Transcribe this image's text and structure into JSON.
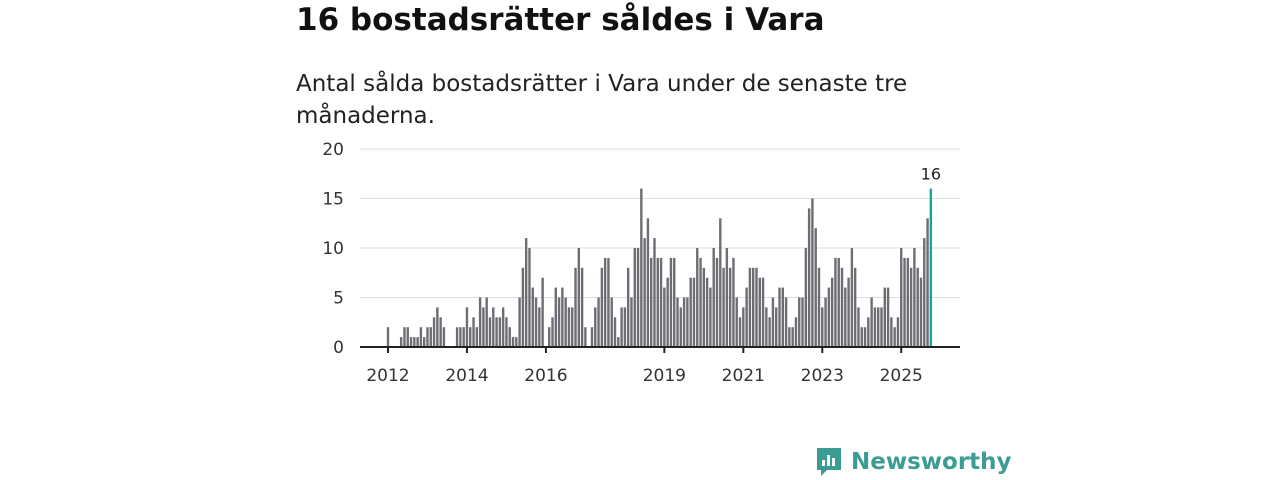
{
  "header": {
    "title": "16 bostadsrätter såldes i Vara",
    "subtitle": "Antal sålda bostadsrätter i Vara under de senaste tre månaderna."
  },
  "brand": {
    "name": "Newsworthy",
    "color": "#3b9c93"
  },
  "chart_data": {
    "type": "bar",
    "title": "16 bostadsrätter såldes i Vara",
    "xlabel": "",
    "ylabel": "",
    "ylim": [
      0,
      20
    ],
    "yticks": [
      "0",
      "5",
      "10",
      "15",
      "20"
    ],
    "xticks": [
      {
        "label": "2012",
        "index": 0
      },
      {
        "label": "2014",
        "index": 24
      },
      {
        "label": "2016",
        "index": 48
      },
      {
        "label": "2019",
        "index": 84
      },
      {
        "label": "2021",
        "index": 108
      },
      {
        "label": "2023",
        "index": 132
      },
      {
        "label": "2025",
        "index": 156
      }
    ],
    "start": "2012-01",
    "interval": "month",
    "values": [
      2,
      0,
      0,
      0,
      1,
      2,
      2,
      1,
      1,
      1,
      2,
      1,
      2,
      2,
      3,
      4,
      3,
      2,
      0,
      0,
      0,
      2,
      2,
      2,
      4,
      2,
      3,
      2,
      5,
      4,
      5,
      3,
      4,
      3,
      3,
      4,
      3,
      2,
      1,
      1,
      5,
      8,
      11,
      10,
      6,
      5,
      4,
      7,
      0,
      2,
      3,
      6,
      5,
      6,
      5,
      4,
      4,
      8,
      10,
      8,
      2,
      0,
      2,
      4,
      5,
      8,
      9,
      9,
      5,
      3,
      1,
      4,
      4,
      8,
      5,
      10,
      10,
      16,
      11,
      13,
      9,
      11,
      9,
      9,
      6,
      7,
      9,
      9,
      5,
      4,
      5,
      5,
      7,
      7,
      10,
      9,
      8,
      7,
      6,
      10,
      9,
      13,
      8,
      10,
      8,
      9,
      5,
      3,
      4,
      6,
      8,
      8,
      8,
      7,
      7,
      4,
      3,
      5,
      4,
      6,
      6,
      5,
      2,
      2,
      3,
      5,
      5,
      10,
      14,
      15,
      12,
      8,
      4,
      5,
      6,
      7,
      9,
      9,
      8,
      6,
      7,
      10,
      8,
      4,
      2,
      2,
      3,
      5,
      4,
      4,
      4,
      6,
      6,
      3,
      2,
      3,
      10,
      9,
      9,
      8,
      10,
      8,
      7,
      11,
      13,
      16
    ],
    "highlight_label": "16",
    "bar_color": "#6e6d73",
    "highlight_color": "#1aa39a"
  }
}
